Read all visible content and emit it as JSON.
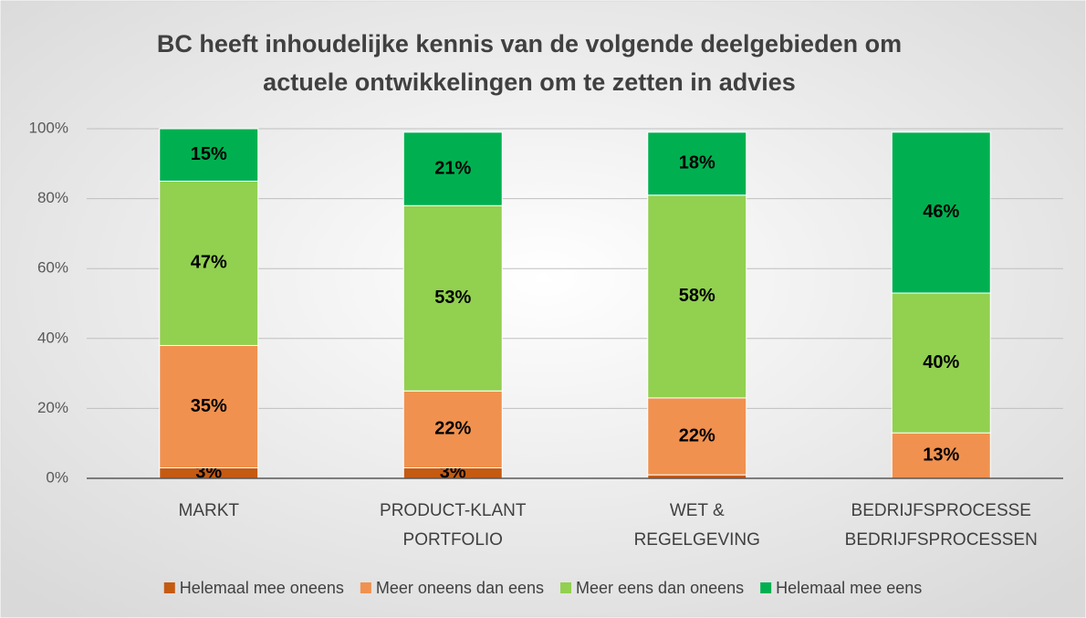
{
  "chart_data": {
    "type": "stacked_bar",
    "title": [
      "BC heeft inhoudelijke kennis van de volgende deelgebieden om",
      "actuele ontwikkelingen om te zetten in advies"
    ],
    "categories": [
      "MARKT",
      "PRODUCT-KLANT PORTFOLIO",
      "WET & REGELGEVING",
      "BEDRIJFSPROCESSEN"
    ],
    "series": [
      {
        "name": "Helemaal mee oneens",
        "color": "#c55a11",
        "values": [
          3,
          3,
          1,
          0
        ],
        "value_labels": [
          "3%",
          "3%",
          null,
          null
        ]
      },
      {
        "name": "Meer oneens dan eens",
        "color": "#f0914f",
        "values": [
          35,
          22,
          22,
          13
        ],
        "value_labels": [
          "35%",
          "22%",
          "22%",
          "13%"
        ]
      },
      {
        "name": "Meer eens dan oneens",
        "color": "#92d050",
        "values": [
          47,
          53,
          58,
          40
        ],
        "value_labels": [
          "47%",
          "53%",
          "58%",
          "40%"
        ]
      },
      {
        "name": "Helemaal mee eens",
        "color": "#00b050",
        "values": [
          15,
          21,
          18,
          46
        ],
        "value_labels": [
          "15%",
          "21%",
          "18%",
          "46%"
        ]
      }
    ],
    "ylim": [
      0,
      100
    ],
    "yticks": [
      {
        "value": 0,
        "label": "0%"
      },
      {
        "value": 20,
        "label": "20%"
      },
      {
        "value": 40,
        "label": "40%"
      },
      {
        "value": 60,
        "label": "60%"
      },
      {
        "value": 80,
        "label": "80%"
      },
      {
        "value": 100,
        "label": "100%"
      }
    ],
    "grid": true,
    "legend": "bottom"
  }
}
